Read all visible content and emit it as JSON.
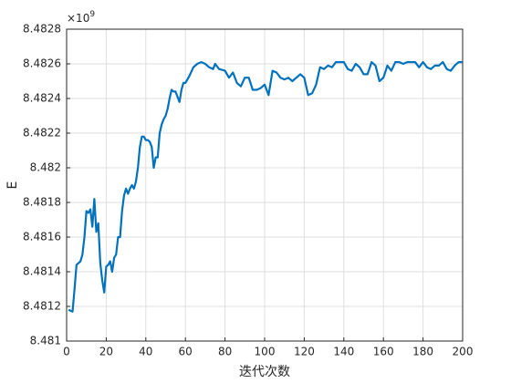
{
  "chart_data": {
    "type": "line",
    "xlabel": "迭代次数",
    "ylabel": "E",
    "y_multiplier": {
      "base": "×10",
      "power": "9"
    },
    "color": "#0072bd",
    "grid": true,
    "xlim": [
      0,
      200
    ],
    "xticks": [
      0,
      20,
      40,
      60,
      80,
      100,
      120,
      140,
      160,
      180,
      200
    ],
    "ylim": [
      8.481,
      8.4828
    ],
    "yticks": [
      8.481,
      8.4812,
      8.4814,
      8.4816,
      8.4818,
      8.482,
      8.4822,
      8.4824,
      8.4826,
      8.4828
    ],
    "x": [
      1,
      3,
      4,
      5,
      7,
      8,
      9,
      10,
      11,
      12,
      13,
      14,
      15,
      16,
      17,
      18,
      19,
      20,
      21,
      22,
      23,
      24,
      25,
      26,
      27,
      28,
      29,
      30,
      31,
      32,
      33,
      34,
      35,
      36,
      37,
      38,
      39,
      40,
      41,
      42,
      43,
      44,
      45,
      46,
      47,
      48,
      49,
      50,
      51,
      52,
      53,
      54,
      55,
      56,
      57,
      58,
      59,
      60,
      62,
      64,
      66,
      68,
      70,
      72,
      74,
      75,
      77,
      80,
      82,
      84,
      86,
      88,
      90,
      92,
      94,
      96,
      98,
      100,
      102,
      104,
      106,
      108,
      110,
      112,
      114,
      116,
      118,
      120,
      122,
      124,
      126,
      128,
      130,
      132,
      134,
      136,
      138,
      140,
      142,
      144,
      146,
      148,
      150,
      152,
      154,
      156,
      158,
      160,
      162,
      164,
      166,
      168,
      170,
      172,
      174,
      176,
      178,
      180,
      182,
      184,
      186,
      188,
      190,
      192,
      194,
      196,
      198,
      200
    ],
    "values": [
      8.48118,
      8.48117,
      8.4813,
      8.48144,
      8.48146,
      8.4815,
      8.4816,
      8.48175,
      8.48174,
      8.48176,
      8.48166,
      8.48182,
      8.48163,
      8.48168,
      8.48145,
      8.48135,
      8.48128,
      8.48143,
      8.48144,
      8.48146,
      8.4814,
      8.48148,
      8.4815,
      8.4816,
      8.4816,
      8.48175,
      8.48184,
      8.48188,
      8.48185,
      8.48188,
      8.4819,
      8.48188,
      8.48192,
      8.482,
      8.48212,
      8.48218,
      8.48218,
      8.48216,
      8.48216,
      8.48215,
      8.48212,
      8.482,
      8.48206,
      8.48206,
      8.4822,
      8.48225,
      8.48228,
      8.4823,
      8.48234,
      8.4824,
      8.48245,
      8.48244,
      8.48244,
      8.48241,
      8.48238,
      8.48245,
      8.48249,
      8.48249,
      8.48253,
      8.48258,
      8.4826,
      8.48261,
      8.4826,
      8.48258,
      8.48257,
      8.4826,
      8.48257,
      8.48256,
      8.48252,
      8.48255,
      8.48249,
      8.48247,
      8.48252,
      8.48252,
      8.48245,
      8.48245,
      8.48246,
      8.48248,
      8.48242,
      8.48256,
      8.48255,
      8.48252,
      8.48251,
      8.48252,
      8.4825,
      8.48252,
      8.48254,
      8.48252,
      8.48242,
      8.48243,
      8.48248,
      8.48258,
      8.48257,
      8.48259,
      8.48258,
      8.48261,
      8.48261,
      8.48261,
      8.48257,
      8.48256,
      8.4826,
      8.48258,
      8.48254,
      8.48254,
      8.48261,
      8.48259,
      8.4825,
      8.48252,
      8.48259,
      8.48256,
      8.48261,
      8.48261,
      8.4826,
      8.48261,
      8.48261,
      8.48261,
      8.48258,
      8.48261,
      8.48258,
      8.48257,
      8.48259,
      8.48259,
      8.48261,
      8.48257,
      8.48256,
      8.48259,
      8.48261,
      8.48261
    ]
  }
}
